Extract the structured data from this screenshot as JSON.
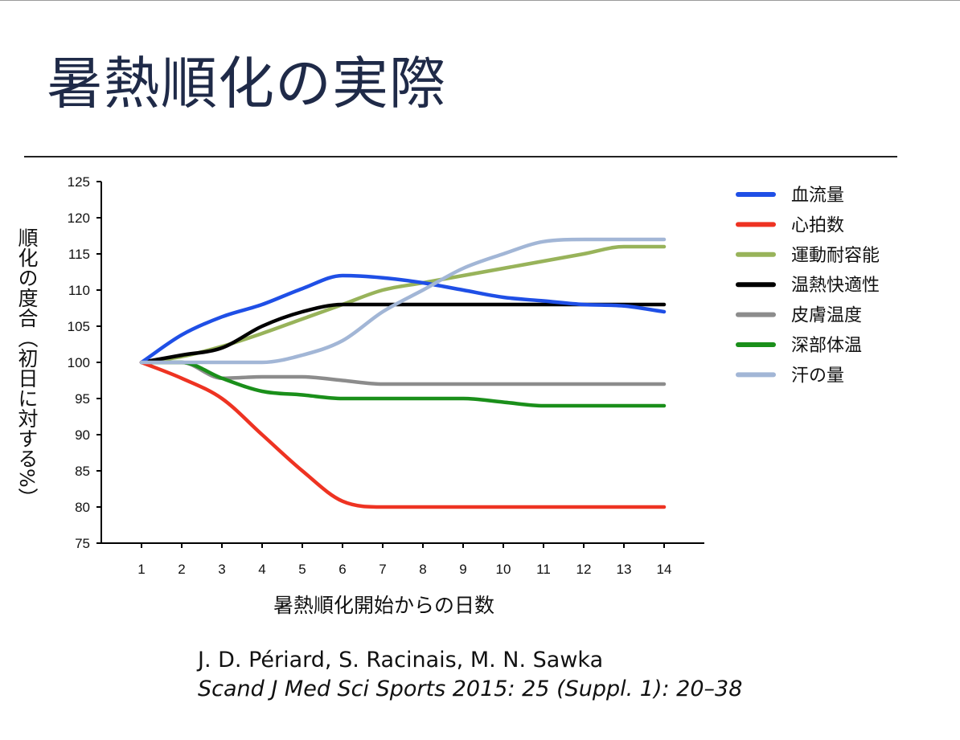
{
  "page": {
    "title": "暑熱順化の実際"
  },
  "citation": {
    "authors": "J. D. Périard, S. Racinais, M. N. Sawka",
    "journal": "Scand J Med Sci Sports 2015: 25 (Suppl. 1): 20–38"
  },
  "chart_data": {
    "type": "line",
    "title": "",
    "xlabel": "暑熱順化開始からの日数",
    "ylabel": "順化の度合（初日に対する%）",
    "x": [
      1,
      2,
      3,
      4,
      5,
      6,
      7,
      8,
      9,
      10,
      11,
      12,
      13,
      14
    ],
    "xlim": [
      1,
      14
    ],
    "ylim": [
      75,
      125
    ],
    "yticks": [
      75,
      80,
      85,
      90,
      95,
      100,
      105,
      110,
      115,
      120,
      125
    ],
    "grid": false,
    "legend_position": "right",
    "series": [
      {
        "name": "血流量",
        "color": "#1f4fe6",
        "values": [
          100,
          103.8,
          106.3,
          108,
          110.2,
          112,
          111.7,
          111,
          110,
          109,
          108.5,
          108,
          107.8,
          107
        ]
      },
      {
        "name": "心拍数",
        "color": "#ee3322",
        "values": [
          100,
          97.8,
          95,
          90,
          85,
          80.8,
          80,
          80,
          80,
          80,
          80,
          80,
          80,
          80
        ]
      },
      {
        "name": "運動耐容能",
        "color": "#98b35a",
        "values": [
          100,
          100.8,
          102.2,
          104,
          106,
          108,
          110,
          111,
          112,
          113,
          114,
          115,
          116,
          116
        ]
      },
      {
        "name": "温熱快適性",
        "color": "#000000",
        "values": [
          100,
          101,
          102,
          105,
          107,
          108,
          108,
          108,
          108,
          108,
          108,
          108,
          108,
          108
        ]
      },
      {
        "name": "皮膚温度",
        "color": "#8c8c8c",
        "values": [
          100,
          100,
          97.8,
          98,
          98,
          97.5,
          97,
          97,
          97,
          97,
          97,
          97,
          97,
          97
        ]
      },
      {
        "name": "深部体温",
        "color": "#1a8f1a",
        "values": [
          100,
          100,
          97.8,
          96,
          95.5,
          95,
          95,
          95,
          95,
          94.5,
          94,
          94,
          94,
          94
        ]
      },
      {
        "name": "汗の量",
        "color": "#a2b6d6",
        "values": [
          100,
          100,
          100,
          100,
          101,
          103,
          107,
          110,
          113,
          115,
          116.7,
          117,
          117,
          117
        ]
      }
    ]
  }
}
